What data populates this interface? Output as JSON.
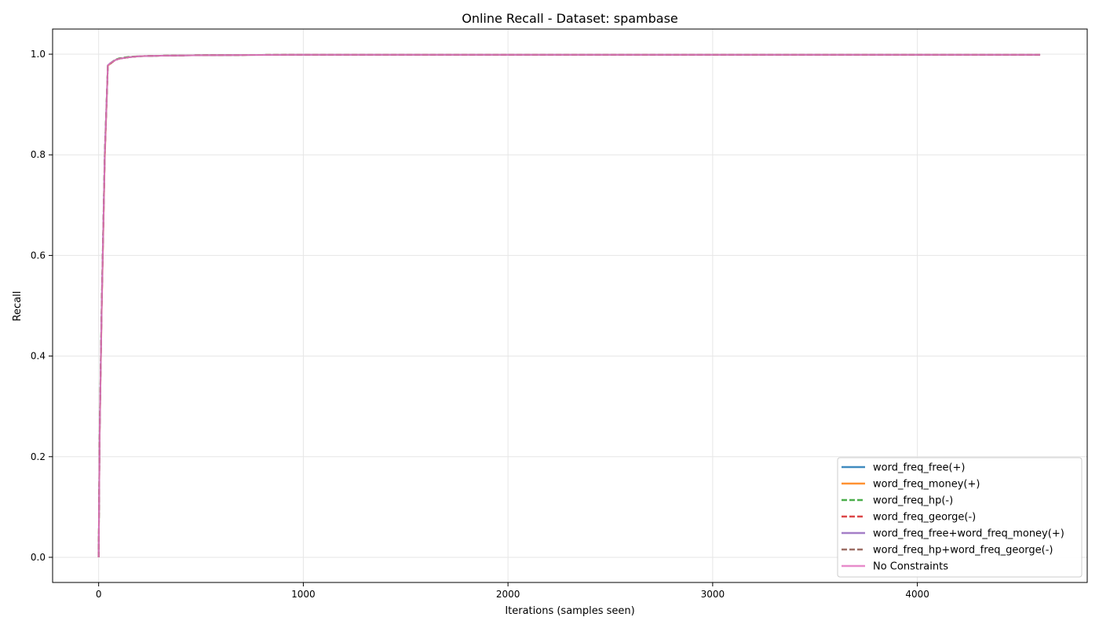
{
  "chart_data": {
    "type": "line",
    "title": "Online Recall - Dataset: spambase",
    "xlabel": "Iterations (samples seen)",
    "ylabel": "Recall",
    "xlim": [
      -225,
      4830
    ],
    "ylim": [
      -0.05,
      1.05
    ],
    "xticks": [
      0,
      1000,
      2000,
      3000,
      4000
    ],
    "yticks": [
      0.0,
      0.2,
      0.4,
      0.6,
      0.8,
      1.0
    ],
    "xtick_labels": [
      "0",
      "1000",
      "2000",
      "3000",
      "4000"
    ],
    "ytick_labels": [
      "0.0",
      "0.2",
      "0.4",
      "0.6",
      "0.8",
      "1.0"
    ],
    "grid": true,
    "legend_position": "lower-right",
    "series": [
      {
        "name": "word_freq_free(+)",
        "color": "#1f77b4",
        "dash": "solid",
        "x": [
          0,
          5,
          15,
          30,
          45,
          60,
          80,
          100,
          150,
          200,
          300,
          500,
          1000,
          2000,
          3000,
          4000,
          4600
        ],
        "y": [
          0.0,
          0.25,
          0.5,
          0.8,
          0.978,
          0.983,
          0.988,
          0.991,
          0.994,
          0.996,
          0.997,
          0.998,
          0.999,
          0.999,
          0.999,
          0.999,
          0.999
        ]
      },
      {
        "name": "word_freq_money(+)",
        "color": "#ff7f0e",
        "dash": "solid",
        "x": [
          0,
          5,
          15,
          30,
          45,
          60,
          80,
          100,
          150,
          200,
          300,
          500,
          1000,
          2000,
          3000,
          4000,
          4600
        ],
        "y": [
          0.0,
          0.24,
          0.49,
          0.79,
          0.977,
          0.982,
          0.988,
          0.991,
          0.994,
          0.996,
          0.997,
          0.998,
          0.999,
          0.999,
          0.999,
          0.999,
          0.999
        ]
      },
      {
        "name": "word_freq_hp(-)",
        "color": "#2ca02c",
        "dash": "dashed",
        "x": [
          0,
          5,
          15,
          30,
          45,
          60,
          80,
          100,
          150,
          200,
          300,
          500,
          1000,
          2000,
          3000,
          4000,
          4600
        ],
        "y": [
          0.0,
          0.26,
          0.51,
          0.81,
          0.978,
          0.983,
          0.989,
          0.992,
          0.995,
          0.996,
          0.997,
          0.998,
          0.999,
          0.999,
          0.999,
          0.999,
          0.999
        ]
      },
      {
        "name": "word_freq_george(-)",
        "color": "#d62728",
        "dash": "dashed",
        "x": [
          0,
          5,
          15,
          30,
          45,
          60,
          80,
          100,
          150,
          200,
          300,
          500,
          1000,
          2000,
          3000,
          4000,
          4600
        ],
        "y": [
          0.0,
          0.25,
          0.5,
          0.8,
          0.977,
          0.982,
          0.988,
          0.991,
          0.994,
          0.996,
          0.997,
          0.998,
          0.999,
          0.999,
          0.999,
          0.999,
          0.999
        ]
      },
      {
        "name": "word_freq_free+word_freq_money(+)",
        "color": "#9467bd",
        "dash": "solid",
        "x": [
          0,
          5,
          15,
          30,
          45,
          60,
          80,
          100,
          150,
          200,
          300,
          500,
          1000,
          2000,
          3000,
          4000,
          4600
        ],
        "y": [
          0.0,
          0.24,
          0.5,
          0.8,
          0.978,
          0.983,
          0.988,
          0.991,
          0.994,
          0.996,
          0.997,
          0.998,
          0.999,
          0.999,
          0.999,
          0.999,
          0.999
        ]
      },
      {
        "name": "word_freq_hp+word_freq_george(-)",
        "color": "#8c564b",
        "dash": "dashed",
        "x": [
          0,
          5,
          15,
          30,
          45,
          60,
          80,
          100,
          150,
          200,
          300,
          500,
          1000,
          2000,
          3000,
          4000,
          4600
        ],
        "y": [
          0.0,
          0.25,
          0.51,
          0.8,
          0.977,
          0.982,
          0.988,
          0.991,
          0.994,
          0.996,
          0.997,
          0.998,
          0.999,
          0.999,
          0.999,
          0.999,
          0.999
        ]
      },
      {
        "name": "No Constraints",
        "color": "#e377c2",
        "dash": "solid",
        "x": [
          0,
          5,
          15,
          30,
          45,
          60,
          80,
          100,
          150,
          200,
          300,
          500,
          1000,
          2000,
          3000,
          4000,
          4600
        ],
        "y": [
          0.0,
          0.25,
          0.5,
          0.8,
          0.978,
          0.983,
          0.988,
          0.991,
          0.994,
          0.996,
          0.997,
          0.998,
          0.999,
          0.999,
          0.999,
          0.999,
          0.999
        ]
      }
    ]
  }
}
